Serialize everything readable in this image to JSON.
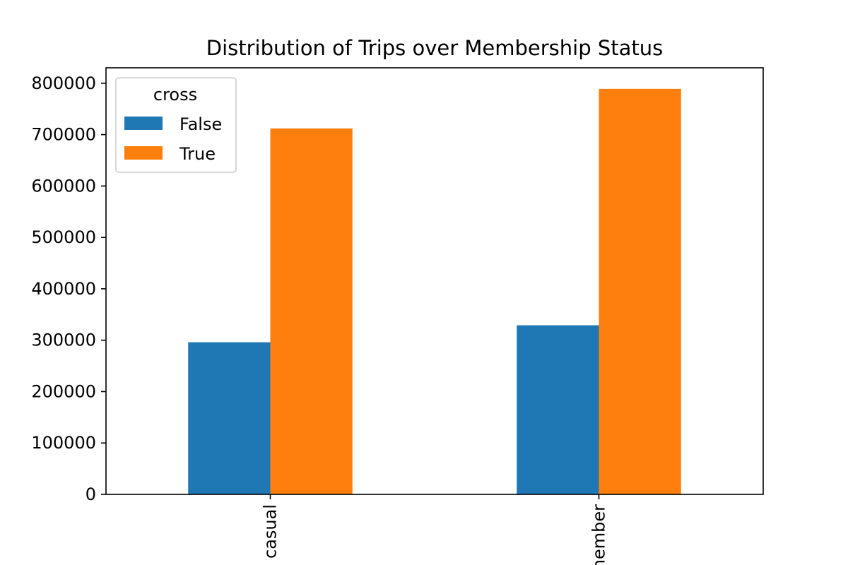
{
  "colors": {
    "series_false": "#1f77b4",
    "series_true": "#ff7f0e",
    "axis": "#000000",
    "background": "#ffffff"
  },
  "chart_data": {
    "type": "bar",
    "title": "Distribution of Trips over Membership Status",
    "xlabel": "",
    "ylabel": "",
    "categories": [
      "casual",
      "member"
    ],
    "series": [
      {
        "name": "False",
        "values": [
          296000,
          329000
        ]
      },
      {
        "name": "True",
        "values": [
          712000,
          789000
        ]
      }
    ],
    "ylim": [
      0,
      830000
    ],
    "yticks": [
      0,
      100000,
      200000,
      300000,
      400000,
      500000,
      600000,
      700000,
      800000
    ],
    "legend": {
      "title": "cross",
      "placement": "top-left"
    },
    "grid": false
  }
}
